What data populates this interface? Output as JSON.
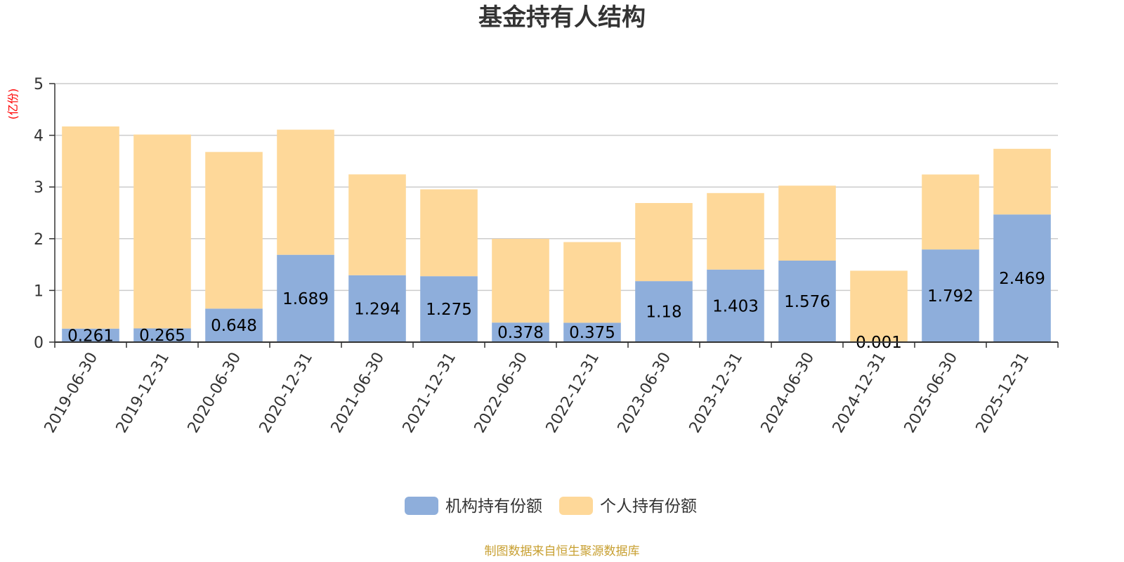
{
  "chart_data": {
    "type": "bar",
    "stacked": true,
    "title": "基金持有人结构",
    "unit_label": "(亿份)",
    "source": "制图数据来自恒生聚源数据库",
    "ylim": [
      0,
      5
    ],
    "yticks": [
      "0",
      "1",
      "2",
      "3",
      "4",
      "5"
    ],
    "grid": true,
    "legend_position": "bottom-center",
    "categories": [
      "2019-06-30",
      "2019-12-31",
      "2020-06-30",
      "2020-12-31",
      "2021-06-30",
      "2021-12-31",
      "2022-06-30",
      "2022-12-31",
      "2023-06-30",
      "2023-12-31",
      "2024-06-30",
      "2024-12-31",
      "2025-06-30",
      "2025-12-31"
    ],
    "series": [
      {
        "name": "机构持有份额",
        "color": "#8eaedb",
        "values": [
          0.261,
          0.265,
          0.648,
          1.689,
          1.294,
          1.275,
          0.378,
          0.375,
          1.18,
          1.403,
          1.576,
          0.001,
          1.792,
          2.469
        ],
        "labels": [
          "0.261",
          "0.265",
          "0.648",
          "1.689",
          "1.294",
          "1.275",
          "0.378",
          "0.375",
          "1.18",
          "1.403",
          "1.576",
          "0.001",
          "1.792",
          "2.469"
        ]
      },
      {
        "name": "个人持有份额",
        "color": "#fed899",
        "values": [
          3.91,
          3.75,
          3.03,
          2.42,
          1.95,
          1.68,
          1.62,
          1.56,
          1.51,
          1.48,
          1.45,
          1.38,
          1.45,
          1.27
        ]
      }
    ],
    "colors": {
      "title": "#333333",
      "unit": "#ff0000",
      "source": "#c8a032",
      "axis": "#333333",
      "grid": "#cccccc"
    }
  }
}
